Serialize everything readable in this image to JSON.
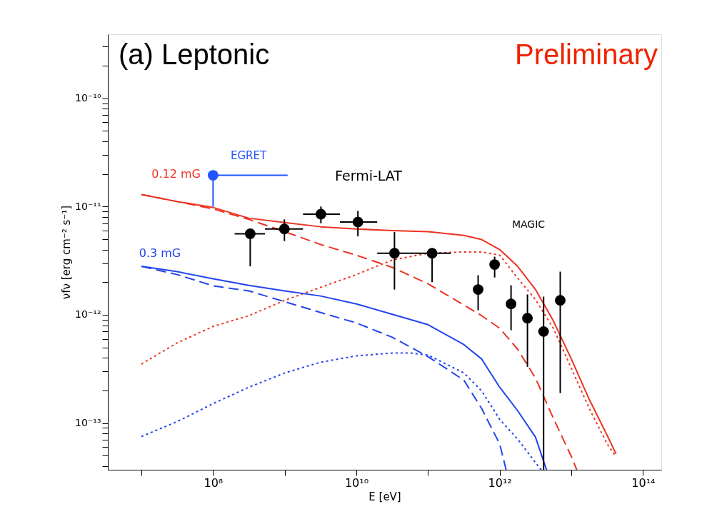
{
  "chart_data": {
    "type": "line",
    "xlabel": "E [eV]",
    "ylabel": "νfν [erg cm⁻² s⁻¹]",
    "log": "xy",
    "grid": false,
    "xlim": [
      3400000.0,
      180000000000000.0
    ],
    "ylim": [
      3.7e-14,
      3.9e-10
    ],
    "xticks": [
      {
        "value": 10000000.0,
        "label": null
      },
      {
        "value": 100000000.0,
        "label": "10⁸"
      },
      {
        "value": 1000000000.0,
        "label": null
      },
      {
        "value": 10000000000.0,
        "label": "10¹⁰"
      },
      {
        "value": 100000000000.0,
        "label": null
      },
      {
        "value": 1000000000000.0,
        "label": "10¹²"
      },
      {
        "value": 10000000000000.0,
        "label": null
      },
      {
        "value": 100000000000000.0,
        "label": "10¹⁴"
      }
    ],
    "yticks": [
      {
        "value": 4e-14,
        "label": null
      },
      {
        "value": 5e-14,
        "label": null
      },
      {
        "value": 6e-14,
        "label": null
      },
      {
        "value": 7e-14,
        "label": null
      },
      {
        "value": 8e-14,
        "label": null
      },
      {
        "value": 9e-14,
        "label": null
      },
      {
        "value": 1e-13,
        "label": "10⁻¹³"
      },
      {
        "value": 2e-13,
        "label": null
      },
      {
        "value": 3e-13,
        "label": null
      },
      {
        "value": 4e-13,
        "label": null
      },
      {
        "value": 5e-13,
        "label": null
      },
      {
        "value": 6e-13,
        "label": null
      },
      {
        "value": 7e-13,
        "label": null
      },
      {
        "value": 8e-13,
        "label": null
      },
      {
        "value": 9e-13,
        "label": null
      },
      {
        "value": 1e-12,
        "label": "10⁻¹²"
      },
      {
        "value": 2e-12,
        "label": null
      },
      {
        "value": 3e-12,
        "label": null
      },
      {
        "value": 4e-12,
        "label": null
      },
      {
        "value": 5e-12,
        "label": null
      },
      {
        "value": 6e-12,
        "label": null
      },
      {
        "value": 7e-12,
        "label": null
      },
      {
        "value": 8e-12,
        "label": null
      },
      {
        "value": 9e-12,
        "label": null
      },
      {
        "value": 1e-11,
        "label": "10⁻¹¹"
      },
      {
        "value": 2e-11,
        "label": null
      },
      {
        "value": 3e-11,
        "label": null
      },
      {
        "value": 4e-11,
        "label": null
      },
      {
        "value": 5e-11,
        "label": null
      },
      {
        "value": 6e-11,
        "label": null
      },
      {
        "value": 7e-11,
        "label": null
      },
      {
        "value": 8e-11,
        "label": null
      },
      {
        "value": 9e-11,
        "label": null
      },
      {
        "value": 1e-10,
        "label": "10⁻¹⁰"
      },
      {
        "value": 2e-10,
        "label": null
      },
      {
        "value": 3e-10,
        "label": null
      }
    ],
    "annotations": [
      "(a) Leptonic",
      "Preliminary",
      "EGRET",
      "0.12 mG",
      "Fermi-LAT",
      "MAGIC",
      "0.3 mG"
    ],
    "series": [
      {
        "line_style": "solid",
        "color": "#ee3322",
        "x": [
          10000000.0,
          31600000.0,
          100000000.0,
          316000000.0,
          1000000000.0,
          3160000000.0,
          10000000000.0,
          31600000000.0,
          100000000000.0,
          316000000000.0,
          560000000000.0,
          1000000000000.0,
          1780000000000.0,
          3160000000000.0,
          5600000000000.0,
          10000000000000.0,
          17800000000000.0,
          31600000000000.0,
          42000000000000.0
        ],
        "values": [
          1.29e-11,
          1.11e-11,
          9.8e-12,
          7.8e-12,
          7.1e-12,
          6.5e-12,
          6.2e-12,
          6e-12,
          5.85e-12,
          5.4e-12,
          4.95e-12,
          4e-12,
          2.8e-12,
          1.71e-12,
          8.8e-13,
          3.9e-13,
          1.65e-13,
          7.7e-14,
          5.2e-14
        ]
      },
      {
        "line_style": "dashed",
        "color": "#ee3322",
        "x": [
          10000000.0,
          31600000.0,
          100000000.0,
          316000000.0,
          1000000000.0,
          3160000000.0,
          10000000000.0,
          31600000000.0,
          100000000000.0,
          316000000000.0,
          560000000000.0,
          1000000000000.0,
          1780000000000.0,
          3160000000000.0,
          5600000000000.0,
          10000000000000.0,
          11900000000000.0
        ],
        "values": [
          1.29e-11,
          1.11e-11,
          9.5e-12,
          7.6e-12,
          5.85e-12,
          4.46e-12,
          3.55e-12,
          2.74e-12,
          1.93e-12,
          1.23e-12,
          9.8e-13,
          7.5e-13,
          4.8e-13,
          2.6e-13,
          1.11e-13,
          4.9e-14,
          3.7e-14
        ]
      },
      {
        "line_style": "dotted",
        "color": "#ee3322",
        "x": [
          10000000.0,
          31600000.0,
          100000000.0,
          316000000.0,
          1000000000.0,
          3160000000.0,
          10000000000.0,
          31600000000.0,
          100000000000.0,
          316000000000.0,
          560000000000.0,
          1000000000000.0,
          1780000000000.0,
          3160000000000.0,
          5600000000000.0,
          10000000000000.0,
          17800000000000.0,
          31600000000000.0,
          42000000000000.0
        ],
        "values": [
          3.5e-13,
          5.5e-13,
          7.8e-13,
          9.8e-13,
          1.36e-12,
          1.79e-12,
          2.35e-12,
          3.2e-12,
          3.7e-12,
          3.8e-12,
          3.8e-12,
          3.55e-12,
          2.18e-12,
          1.38e-12,
          7.5e-13,
          3.2e-13,
          1.36e-13,
          6.4e-14,
          4.9e-14
        ]
      },
      {
        "line_style": "solid",
        "color": "#2244ee",
        "x": [
          10000000.0,
          31600000.0,
          100000000.0,
          316000000.0,
          1000000000.0,
          3160000000.0,
          10000000000.0,
          31600000000.0,
          100000000000.0,
          316000000000.0,
          560000000000.0,
          1000000000000.0,
          1780000000000.0,
          3160000000000.0,
          4500000000000.0
        ],
        "values": [
          2.8e-12,
          2.5e-12,
          2.15e-12,
          1.87e-12,
          1.66e-12,
          1.49e-12,
          1.26e-12,
          1.01e-12,
          8.1e-13,
          5.3e-13,
          3.9e-13,
          2.14e-13,
          1.3e-13,
          7.4e-14,
          3.7e-14
        ]
      },
      {
        "line_style": "dashed",
        "color": "#2244ee",
        "x": [
          10000000.0,
          31600000.0,
          100000000.0,
          316000000.0,
          1000000000.0,
          3160000000.0,
          10000000000.0,
          31600000000.0,
          100000000000.0,
          316000000000.0,
          560000000000.0,
          1000000000000.0,
          1230000000000.0
        ],
        "values": [
          2.8e-12,
          2.35e-12,
          1.85e-12,
          1.66e-12,
          1.32e-12,
          1.05e-12,
          8.4e-13,
          6.2e-13,
          4.1e-13,
          2.49e-13,
          1.36e-13,
          6.4e-14,
          3.7e-14
        ]
      },
      {
        "line_style": "dotted",
        "color": "#2244ee",
        "x": [
          10000000.0,
          31600000.0,
          100000000.0,
          316000000.0,
          1000000000.0,
          3160000000.0,
          10000000000.0,
          31600000000.0,
          57000000000.0,
          100000000000.0,
          316000000000.0,
          560000000000.0,
          1000000000000.0,
          1780000000000.0,
          3160000000000.0,
          3780000000000.0
        ],
        "values": [
          7.5e-14,
          1.03e-13,
          1.51e-13,
          2.14e-13,
          2.9e-13,
          3.64e-13,
          4.17e-13,
          4.43e-13,
          4.43e-13,
          4.24e-13,
          2.9e-13,
          1.98e-13,
          1.08e-13,
          7.1e-14,
          4.3e-14,
          3.7e-14
        ]
      },
      {
        "type": "scatter",
        "marker": "circle",
        "color": "#000000",
        "x": [
          330000000.0,
          990000000.0,
          3200000000.0,
          10500000000.0,
          34000000000.0,
          114000000000.0
        ],
        "values": [
          5.6e-12,
          6.2e-12,
          8.5e-12,
          7.2e-12,
          3.7e-12,
          3.7e-12
        ],
        "errors": [
          [
            2.8e-12,
            5.6e-12
          ],
          [
            4.8e-12,
            7.6e-12
          ],
          [
            7e-12,
            1e-11
          ],
          [
            5.3e-12,
            9.1e-12
          ],
          [
            1.71e-12,
            5.8e-12
          ],
          [
            2e-12,
            3.7e-12
          ]
        ],
        "xerrors": [
          [
            200000000.0,
            530000000.0
          ],
          [
            530000000.0,
            1800000000.0
          ],
          [
            1800000000.0,
            5900000000.0
          ],
          [
            5900000000.0,
            19500000000.0
          ],
          [
            19500000000.0,
            63000000000.0
          ],
          [
            63000000000.0,
            206000000000.0
          ]
        ]
      },
      {
        "type": "scatter",
        "marker": "circle",
        "color": "#000000",
        "x": [
          500000000000.0,
          850000000000.0,
          1440000000000.0,
          2440000000000.0,
          4100000000000.0,
          7000000000000.0
        ],
        "values": [
          1.71e-12,
          2.91e-12,
          1.26e-12,
          9.3e-13,
          7e-13,
          1.36e-12
        ],
        "errors": [
          [
            1.1e-12,
            2.32e-12
          ],
          [
            2.21e-12,
            3.44e-12
          ],
          [
            7.2e-13,
            1.87e-12
          ],
          [
            3.3e-13,
            1.54e-12
          ],
          [
            3.7e-14,
            1.47e-12
          ],
          [
            1.89e-13,
            2.5e-12
          ]
        ]
      },
      {
        "type": "scatter",
        "marker": "circle",
        "color": "#2255ff",
        "x": [
          100000000.0
        ],
        "values": [
          1.94e-11
        ],
        "errors": [
          [
            1e-11,
            1.94e-11
          ]
        ],
        "xerrors": [
          [
            100000000.0,
            1100000000.0
          ]
        ]
      }
    ]
  }
}
